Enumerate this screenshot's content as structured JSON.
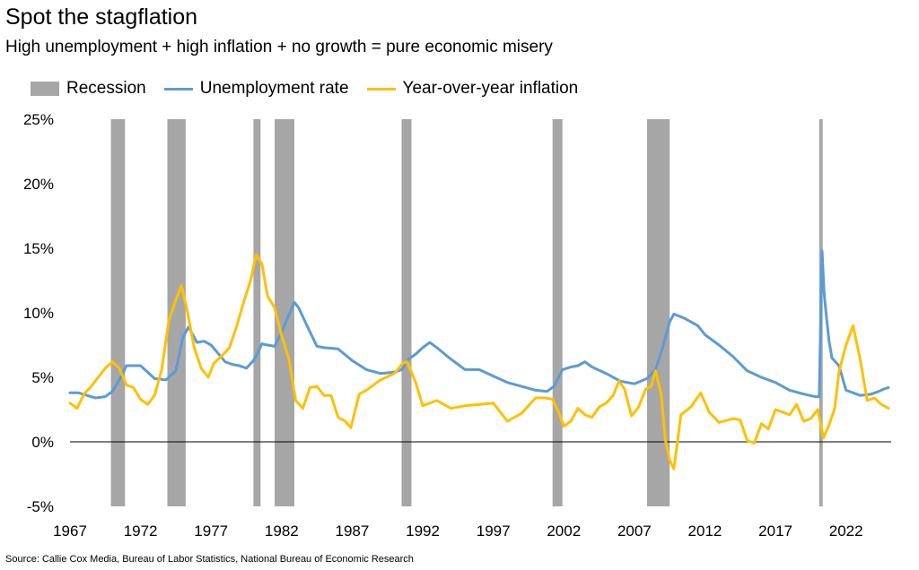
{
  "chart_data": {
    "type": "line",
    "title": "Spot the stagflation",
    "subtitle": "High unemployment + high inflation + no growth = pure economic misery",
    "source": "Source: Callie Cox Media, Bureau of Labor Statistics, National Bureau of Economic Research",
    "legend": [
      {
        "name": "Recession",
        "kind": "band",
        "color": "#a6a6a6"
      },
      {
        "name": "Unemployment rate",
        "kind": "line",
        "color": "#5b9bd5"
      },
      {
        "name": "Year-over-year inflation",
        "kind": "line",
        "color": "#ffc000"
      }
    ],
    "xlim": [
      1967,
      2025.2
    ],
    "ylim": [
      -5,
      25
    ],
    "x_ticks": [
      1967,
      1972,
      1977,
      1982,
      1987,
      1992,
      1997,
      2002,
      2007,
      2012,
      2017,
      2022
    ],
    "x_tick_labels": [
      "1967",
      "1972",
      "1977",
      "1982",
      "1987",
      "1992",
      "1997",
      "2002",
      "2007",
      "2012",
      "2017",
      "2022"
    ],
    "y_ticks": [
      -5,
      0,
      5,
      10,
      15,
      20,
      25
    ],
    "y_tick_labels": [
      "-5%",
      "0%",
      "5%",
      "10%",
      "15%",
      "20%",
      "25%"
    ],
    "recessions": [
      [
        1969.9,
        1970.9
      ],
      [
        1973.9,
        1975.2
      ],
      [
        1980.0,
        1980.5
      ],
      [
        1981.5,
        1982.9
      ],
      [
        1990.5,
        1991.2
      ],
      [
        2001.2,
        2001.9
      ],
      [
        2007.9,
        2009.5
      ],
      [
        2020.1,
        2020.35
      ]
    ],
    "series": [
      {
        "name": "Unemployment rate",
        "color": "#5b9bd5",
        "x": [
          1967.0,
          1967.6,
          1968.2,
          1968.8,
          1969.5,
          1970.0,
          1970.6,
          1971.0,
          1972.0,
          1973.0,
          1973.8,
          1974.5,
          1975.0,
          1975.4,
          1976.0,
          1976.5,
          1977.0,
          1978.0,
          1978.5,
          1979.0,
          1979.5,
          1980.0,
          1980.3,
          1980.6,
          1981.0,
          1981.5,
          1982.0,
          1982.5,
          1982.9,
          1983.2,
          1983.8,
          1984.5,
          1985.0,
          1986.0,
          1987.0,
          1988.0,
          1989.0,
          1990.0,
          1990.5,
          1991.0,
          1991.5,
          1992.0,
          1992.5,
          1993.0,
          1994.0,
          1995.0,
          1996.0,
          1997.0,
          1998.0,
          1999.0,
          2000.0,
          2000.8,
          2001.3,
          2001.9,
          2002.5,
          2003.0,
          2003.5,
          2004.0,
          2005.0,
          2006.0,
          2007.0,
          2007.9,
          2008.5,
          2009.0,
          2009.5,
          2009.8,
          2010.5,
          2011.0,
          2011.5,
          2012.0,
          2013.0,
          2014.0,
          2015.0,
          2016.0,
          2017.0,
          2018.0,
          2019.0,
          2019.8,
          2020.1,
          2020.3,
          2020.45,
          2020.6,
          2020.8,
          2021.0,
          2021.5,
          2022.0,
          2023.0,
          2023.8,
          2024.3,
          2024.7,
          2025.0
        ],
        "values": [
          3.8,
          3.8,
          3.6,
          3.4,
          3.5,
          3.9,
          5.0,
          5.9,
          5.9,
          4.9,
          4.8,
          5.5,
          8.1,
          8.9,
          7.7,
          7.8,
          7.5,
          6.2,
          6.0,
          5.9,
          5.7,
          6.3,
          6.9,
          7.6,
          7.5,
          7.4,
          8.5,
          9.8,
          10.8,
          10.4,
          9.0,
          7.4,
          7.3,
          7.2,
          6.3,
          5.6,
          5.3,
          5.4,
          5.6,
          6.4,
          6.8,
          7.3,
          7.7,
          7.3,
          6.4,
          5.6,
          5.6,
          5.1,
          4.6,
          4.3,
          4.0,
          3.9,
          4.3,
          5.6,
          5.8,
          5.9,
          6.2,
          5.8,
          5.3,
          4.7,
          4.5,
          4.9,
          5.6,
          7.3,
          9.3,
          9.9,
          9.6,
          9.3,
          9.0,
          8.3,
          7.5,
          6.6,
          5.5,
          5.0,
          4.6,
          4.0,
          3.7,
          3.5,
          3.5,
          14.8,
          11.5,
          9.8,
          7.8,
          6.5,
          5.9,
          4.0,
          3.6,
          3.7,
          3.9,
          4.1,
          4.2
        ]
      },
      {
        "name": "Year-over-year inflation",
        "color": "#ffc000",
        "x": [
          1967.0,
          1967.5,
          1968.0,
          1968.5,
          1969.0,
          1969.5,
          1970.0,
          1970.5,
          1971.0,
          1971.5,
          1972.0,
          1972.5,
          1973.0,
          1973.5,
          1974.0,
          1974.5,
          1974.9,
          1975.3,
          1975.8,
          1976.3,
          1976.8,
          1977.2,
          1977.8,
          1978.3,
          1978.8,
          1979.3,
          1979.8,
          1980.2,
          1980.6,
          1981.0,
          1981.5,
          1982.0,
          1982.5,
          1983.0,
          1983.5,
          1984.0,
          1984.5,
          1985.0,
          1985.5,
          1986.0,
          1986.5,
          1986.9,
          1987.5,
          1988.0,
          1989.0,
          1990.0,
          1990.6,
          1990.9,
          1991.5,
          1992.0,
          1993.0,
          1994.0,
          1995.0,
          1996.0,
          1997.0,
          1998.0,
          1999.0,
          2000.0,
          2000.7,
          2001.2,
          2001.7,
          2002.0,
          2002.5,
          2003.0,
          2003.5,
          2004.0,
          2004.5,
          2005.0,
          2005.5,
          2005.9,
          2006.3,
          2006.8,
          2007.3,
          2007.8,
          2008.2,
          2008.5,
          2008.9,
          2009.2,
          2009.5,
          2009.8,
          2010.3,
          2011.0,
          2011.7,
          2012.3,
          2013.0,
          2014.0,
          2014.5,
          2015.0,
          2015.5,
          2016.0,
          2016.5,
          2017.0,
          2018.0,
          2018.5,
          2019.0,
          2019.5,
          2020.0,
          2020.4,
          2020.8,
          2021.2,
          2021.5,
          2022.0,
          2022.5,
          2023.0,
          2023.5,
          2024.0,
          2024.5,
          2025.0
        ],
        "values": [
          3.0,
          2.6,
          3.7,
          4.3,
          5.0,
          5.7,
          6.2,
          5.7,
          4.4,
          4.2,
          3.3,
          2.9,
          3.6,
          5.6,
          9.4,
          11.0,
          12.1,
          10.2,
          7.3,
          5.7,
          5.0,
          6.1,
          6.7,
          7.3,
          8.9,
          10.8,
          12.5,
          14.5,
          13.8,
          11.3,
          10.4,
          8.2,
          6.5,
          3.2,
          2.6,
          4.2,
          4.3,
          3.6,
          3.6,
          1.9,
          1.6,
          1.1,
          3.7,
          4.0,
          4.8,
          5.3,
          6.1,
          6.2,
          4.6,
          2.8,
          3.2,
          2.6,
          2.8,
          2.9,
          3.0,
          1.6,
          2.2,
          3.4,
          3.4,
          3.3,
          2.1,
          1.2,
          1.6,
          2.6,
          2.1,
          1.9,
          2.7,
          3.0,
          3.6,
          4.7,
          4.1,
          2.0,
          2.7,
          4.1,
          4.3,
          5.5,
          3.7,
          0.1,
          -1.4,
          -2.1,
          2.1,
          2.7,
          3.8,
          2.3,
          1.5,
          1.8,
          1.7,
          0.1,
          -0.1,
          1.4,
          1.0,
          2.5,
          2.1,
          2.9,
          1.6,
          1.8,
          2.5,
          0.3,
          1.3,
          2.6,
          5.4,
          7.5,
          9.0,
          6.4,
          3.2,
          3.4,
          2.9,
          2.6
        ]
      }
    ]
  }
}
